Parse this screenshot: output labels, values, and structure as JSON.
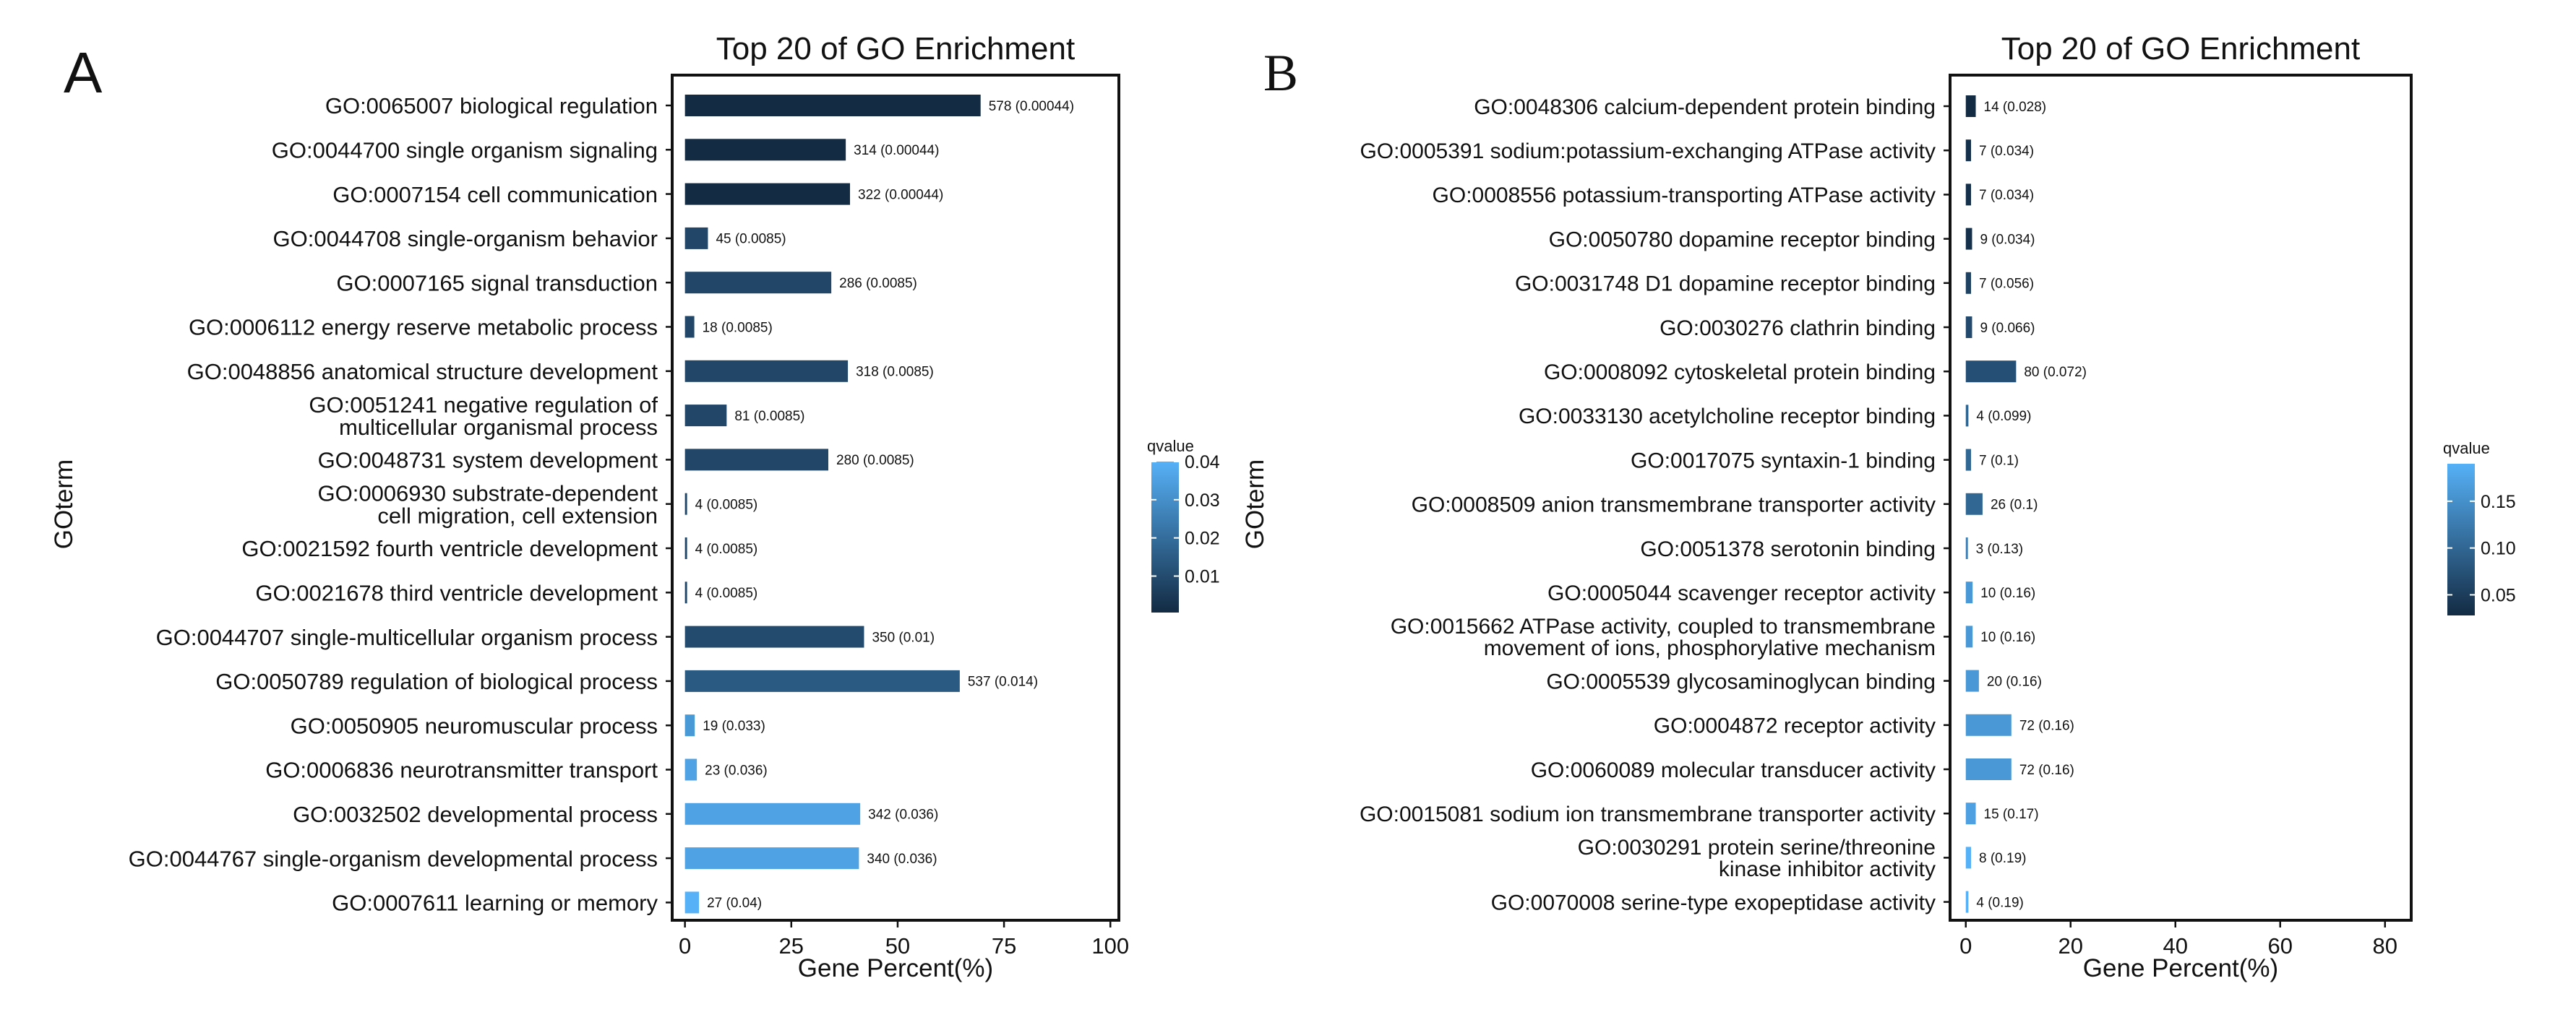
{
  "figure": {
    "panel_a_letter": "A",
    "panel_b_letter": "B"
  },
  "chart_data": [
    {
      "type": "bar",
      "orientation": "horizontal",
      "panel": "A",
      "title": "Top 20 of GO Enrichment",
      "xlabel": "Gene Percent(%)",
      "ylabel": "GOterm",
      "xlim": [
        -3,
        102
      ],
      "xticks": [
        0,
        25,
        50,
        75,
        100
      ],
      "grid": false,
      "legend": {
        "title": "qvalue",
        "placement": "right",
        "range": [
          0.00044,
          0.04
        ],
        "ticks": [
          0.01,
          0.02,
          0.03,
          0.04
        ],
        "tick_labels": [
          "0.01",
          "0.02",
          "0.03",
          "0.04"
        ]
      },
      "categories": [
        "GO:0065007 biological regulation",
        "GO:0044700 single organism signaling",
        "GO:0007154 cell communication",
        "GO:0044708 single-organism behavior",
        "GO:0007165 signal transduction",
        "GO:0006112 energy reserve metabolic process",
        "GO:0048856 anatomical structure development",
        "GO:0051241 negative regulation of\nmulticellular organismal process",
        "GO:0048731 system development",
        "GO:0006930 substrate-dependent\ncell migration, cell extension",
        "GO:0021592 fourth ventricle development",
        "GO:0021678 third ventricle development",
        "GO:0044707 single-multicellular organism process",
        "GO:0050789 regulation of biological process",
        "GO:0050905 neuromuscular process",
        "GO:0006836 neurotransmitter transport",
        "GO:0032502 developmental process",
        "GO:0044767 single-organism developmental process",
        "GO:0007611 learning or memory"
      ],
      "values": [
        69.5,
        37.8,
        38.8,
        5.4,
        34.4,
        2.2,
        38.3,
        9.8,
        33.7,
        0.5,
        0.5,
        0.5,
        42.1,
        64.6,
        2.3,
        2.8,
        41.2,
        40.9,
        3.3
      ],
      "qvalues": [
        0.00044,
        0.00044,
        0.00044,
        0.0085,
        0.0085,
        0.0085,
        0.0085,
        0.0085,
        0.0085,
        0.0085,
        0.0085,
        0.0085,
        0.01,
        0.014,
        0.033,
        0.036,
        0.036,
        0.036,
        0.04
      ],
      "data_labels": [
        "578 (0.00044)",
        "314 (0.00044)",
        "322 (0.00044)",
        "45 (0.0085)",
        "286 (0.0085)",
        "18 (0.0085)",
        "318 (0.0085)",
        "81 (0.0085)",
        "280 (0.0085)",
        "4 (0.0085)",
        "4 (0.0085)",
        "4 (0.0085)",
        "350 (0.01)",
        "537 (0.014)",
        "19 (0.033)",
        "23 (0.036)",
        "342 (0.036)",
        "340 (0.036)",
        "27 (0.04)"
      ]
    },
    {
      "type": "bar",
      "orientation": "horizontal",
      "panel": "B",
      "title": "Top 20 of GO Enrichment",
      "xlabel": "Gene Percent(%)",
      "ylabel": "GOterm",
      "xlim": [
        -3,
        85
      ],
      "xticks": [
        0,
        20,
        40,
        60,
        80
      ],
      "grid": false,
      "legend": {
        "title": "qvalue",
        "placement": "right",
        "range": [
          0.028,
          0.19
        ],
        "ticks": [
          0.05,
          0.1,
          0.15
        ],
        "tick_labels": [
          "0.05",
          "0.10",
          "0.15"
        ]
      },
      "categories": [
        "GO:0048306 calcium-dependent protein binding",
        "GO:0005391 sodium:potassium-exchanging ATPase activity",
        "GO:0008556 potassium-transporting ATPase activity",
        "GO:0050780 dopamine receptor binding",
        "GO:0031748 D1 dopamine receptor binding",
        "GO:0030276 clathrin binding",
        "GO:0008092 cytoskeletal protein binding",
        "GO:0033130 acetylcholine receptor binding",
        "GO:0017075 syntaxin-1 binding",
        "GO:0008509 anion transmembrane transporter activity",
        "GO:0051378 serotonin binding",
        "GO:0005044 scavenger receptor activity",
        "GO:0015662 ATPase activity, coupled to transmembrane\nmovement of ions, phosphorylative mechanism",
        "GO:0005539 glycosaminoglycan binding",
        "GO:0004872 receptor activity",
        "GO:0060089 molecular transducer activity",
        "GO:0015081 sodium ion transmembrane transporter activity",
        "GO:0030291 protein serine/threonine\nkinase inhibitor activity",
        "GO:0070008 serine-type exopeptidase activity"
      ],
      "values": [
        1.9,
        1.0,
        1.0,
        1.2,
        1.0,
        1.2,
        9.6,
        0.5,
        1.0,
        3.2,
        0.4,
        1.3,
        1.3,
        2.5,
        8.7,
        8.7,
        1.9,
        1.0,
        0.5
      ],
      "qvalues": [
        0.028,
        0.034,
        0.034,
        0.034,
        0.056,
        0.066,
        0.072,
        0.099,
        0.1,
        0.1,
        0.13,
        0.16,
        0.16,
        0.16,
        0.16,
        0.16,
        0.17,
        0.19,
        0.19
      ],
      "data_labels": [
        "14 (0.028)",
        "7 (0.034)",
        "7 (0.034)",
        "9 (0.034)",
        "7 (0.056)",
        "9 (0.066)",
        "80 (0.072)",
        "4 (0.099)",
        "7 (0.1)",
        "26 (0.1)",
        "3 (0.13)",
        "10 (0.16)",
        "10 (0.16)",
        "20 (0.16)",
        "72 (0.16)",
        "72 (0.16)",
        "15 (0.17)",
        "8 (0.19)",
        "4 (0.19)"
      ]
    }
  ]
}
